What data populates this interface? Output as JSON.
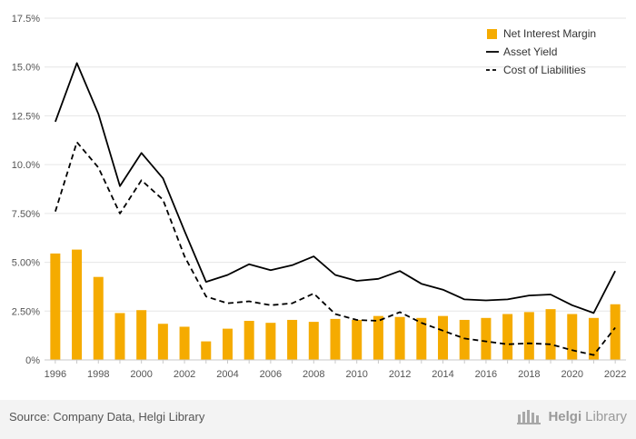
{
  "source": "Source: Company Data, Helgi Library",
  "logo": {
    "name": "HelgiLibrary",
    "part1": "Helgi",
    "part2": "Library"
  },
  "colors": {
    "bar": "#f5ab00",
    "line": "#000000",
    "grid": "#e6e6e6",
    "axis_text": "#555555",
    "footer": "#f3f3f3"
  },
  "chart_data": {
    "type": "bar",
    "title": "",
    "xlabel": "",
    "ylabel": "",
    "ylim": [
      0,
      17.5
    ],
    "y_ticks": [
      "0%",
      "2.50%",
      "5.00%",
      "7.50%",
      "10.0%",
      "12.5%",
      "15.0%",
      "17.5%"
    ],
    "y_tick_values": [
      0,
      2.5,
      5,
      7.5,
      10,
      12.5,
      15,
      17.5
    ],
    "x_tick_labels": [
      "1996",
      "1998",
      "2000",
      "2002",
      "2004",
      "2006",
      "2008",
      "2010",
      "2012",
      "2014",
      "2016",
      "2018",
      "2020",
      "2022"
    ],
    "categories": [
      "1996",
      "1997",
      "1998",
      "1999",
      "2000",
      "2001",
      "2002",
      "2003",
      "2004",
      "2005",
      "2006",
      "2007",
      "2008",
      "2009",
      "2010",
      "2011",
      "2012",
      "2013",
      "2014",
      "2015",
      "2016",
      "2017",
      "2018",
      "2019",
      "2020",
      "2021",
      "2022"
    ],
    "legend_position": "top-right",
    "grid": "horizontal",
    "series": [
      {
        "name": "Net Interest Margin",
        "type": "bar",
        "values": [
          5.45,
          5.65,
          4.25,
          2.4,
          2.55,
          1.85,
          1.7,
          0.95,
          1.6,
          2.0,
          1.9,
          2.05,
          1.95,
          2.1,
          2.05,
          2.25,
          2.2,
          2.15,
          2.25,
          2.05,
          2.15,
          2.35,
          2.45,
          2.6,
          2.35,
          2.15,
          2.85
        ]
      },
      {
        "name": "Asset Yield",
        "type": "line",
        "style": "solid",
        "values": [
          12.2,
          15.2,
          12.6,
          8.9,
          10.6,
          9.3,
          6.6,
          4.0,
          4.35,
          4.9,
          4.6,
          4.85,
          5.3,
          4.35,
          4.05,
          4.15,
          4.55,
          3.9,
          3.6,
          3.1,
          3.05,
          3.1,
          3.3,
          3.35,
          2.8,
          2.4,
          4.55
        ]
      },
      {
        "name": "Cost of Liabilities",
        "type": "line",
        "style": "dashed",
        "values": [
          7.6,
          11.15,
          9.85,
          7.5,
          9.2,
          8.2,
          5.3,
          3.25,
          2.9,
          3.0,
          2.8,
          2.9,
          3.4,
          2.35,
          2.05,
          2.0,
          2.45,
          1.9,
          1.5,
          1.1,
          0.95,
          0.8,
          0.85,
          0.8,
          0.5,
          0.25,
          1.65
        ]
      }
    ]
  }
}
